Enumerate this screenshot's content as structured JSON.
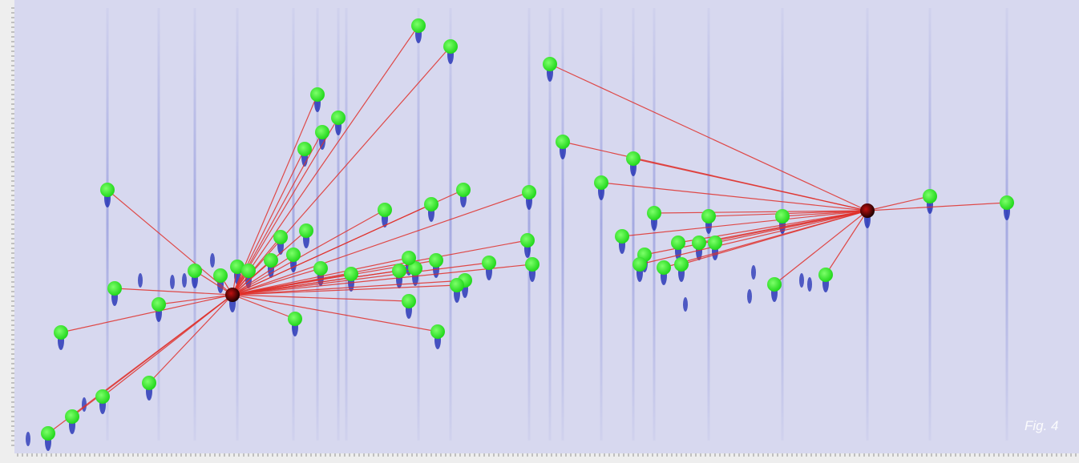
{
  "figure": {
    "caption": "Fig. 4"
  }
}
